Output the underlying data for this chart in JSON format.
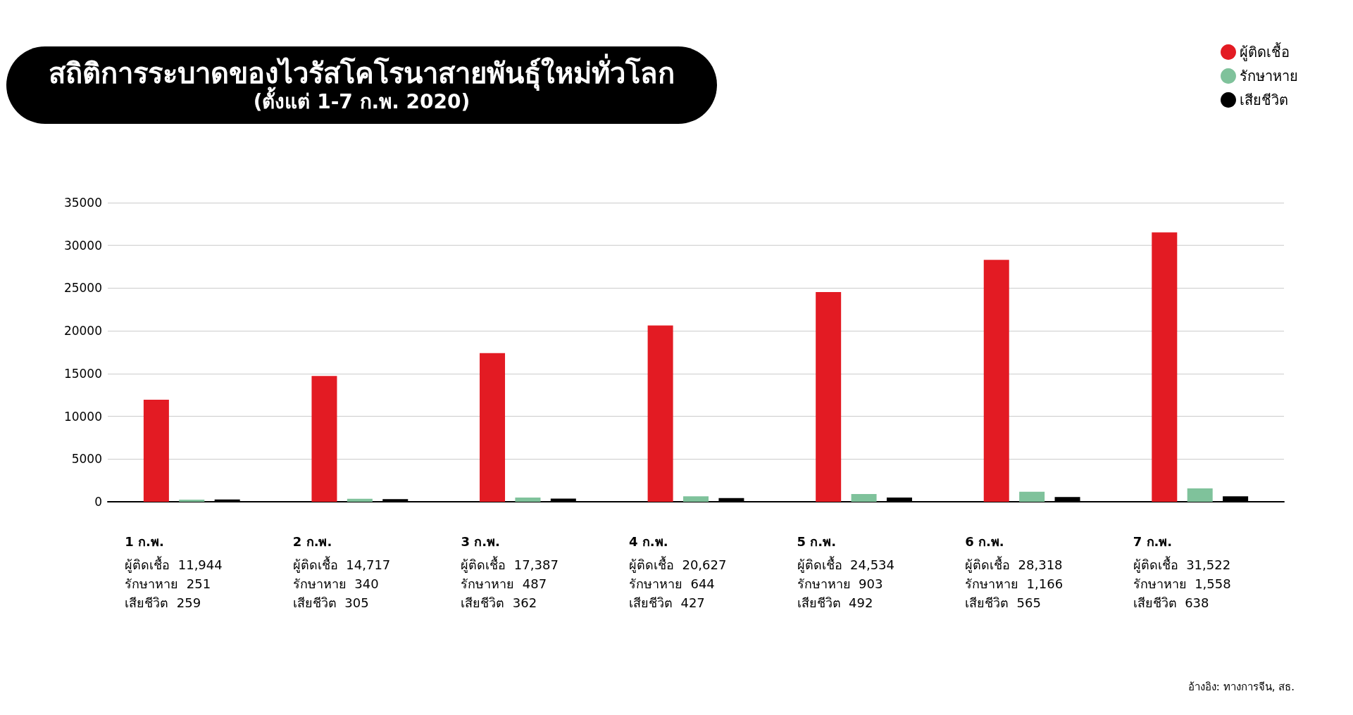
{
  "chart_data": {
    "type": "bar",
    "title": "สถิติการระบาดของไวรัสโคโรนาสายพันธุ์ใหม่ทั่วโลก",
    "subtitle": "(ตั้งแต่ 1-7 ก.พ. 2020)",
    "categories": [
      "1 ก.พ.",
      "2 ก.พ.",
      "3 ก.พ.",
      "4 ก.พ.",
      "5 ก.พ.",
      "6 ก.พ.",
      "7 ก.พ."
    ],
    "series": [
      {
        "name": "ผู้ติดเชื้อ",
        "color": "#e31b23",
        "values": [
          11944,
          14717,
          17387,
          20627,
          24534,
          28318,
          31522
        ],
        "value_labels": [
          "11,944",
          "14,717",
          "17,387",
          "20,627",
          "24,534",
          "28,318",
          "31,522"
        ]
      },
      {
        "name": "รักษาหาย",
        "color": "#7fc29b",
        "values": [
          251,
          340,
          487,
          644,
          903,
          1166,
          1558
        ],
        "value_labels": [
          "251",
          "340",
          "487",
          "644",
          "903",
          "1,166",
          "1,558"
        ]
      },
      {
        "name": "เสียชีวิต",
        "color": "#000000",
        "values": [
          259,
          305,
          362,
          427,
          492,
          565,
          638
        ],
        "value_labels": [
          "259",
          "305",
          "362",
          "427",
          "492",
          "565",
          "638"
        ]
      }
    ],
    "ylim": [
      0,
      35000
    ],
    "yticks": [
      0,
      5000,
      10000,
      15000,
      20000,
      25000,
      30000,
      35000
    ],
    "grid": "y",
    "legend": "top right",
    "annotations": [
      "อ้างอิง: ทางการจีน, สธ."
    ]
  }
}
